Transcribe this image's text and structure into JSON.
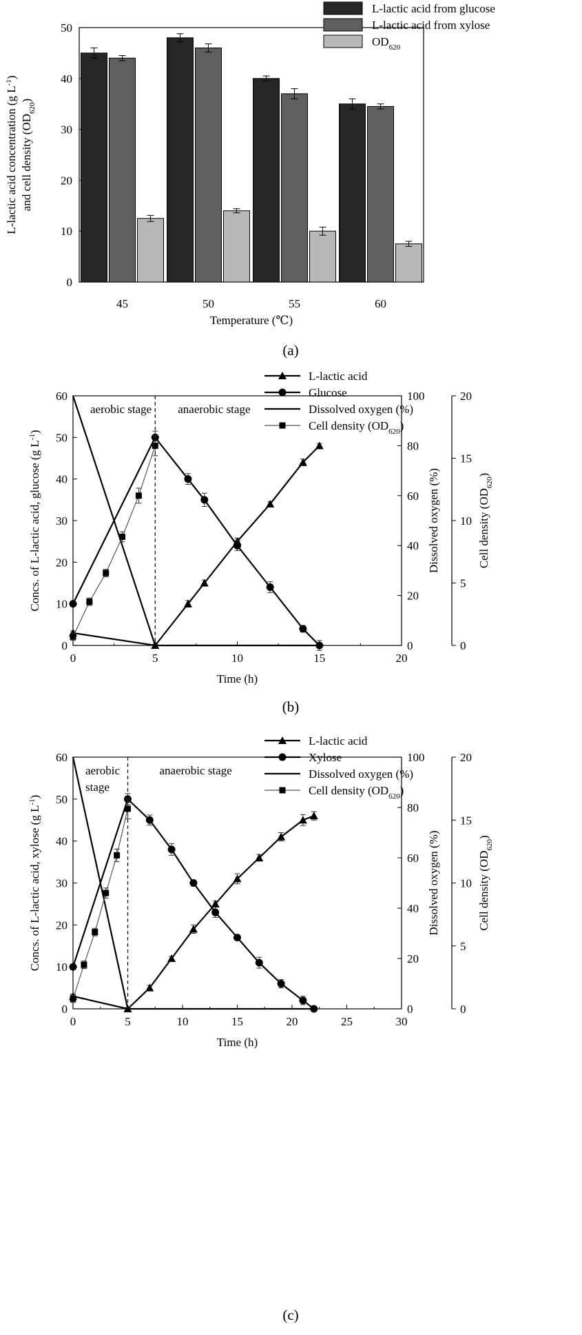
{
  "colors": {
    "glucose_bar": "#262626",
    "xylose_bar": "#5f5f5f",
    "od_bar": "#b8b8b8",
    "axis": "#000000",
    "od_line": "#555555"
  },
  "chart_data": [
    {
      "id": "a",
      "type": "bar",
      "panel_label": "(a)",
      "xlabel": "Temperature (℃)",
      "ylabel_line1": "L-lactic acid concentration (g L",
      "ylabel_line1_sup": "-1",
      "ylabel_line1_end": ")",
      "ylabel_line2": "and cell density (OD",
      "ylabel_line2_sub": "620",
      "ylabel_line2_end": ")",
      "ylim": [
        0,
        50
      ],
      "yticks": [
        0,
        10,
        20,
        30,
        40,
        50
      ],
      "categories": [
        "45",
        "50",
        "55",
        "60"
      ],
      "legend_position": "top-right",
      "series": [
        {
          "name": "L-lactic acid from glucose",
          "values": [
            45,
            48,
            40,
            35
          ],
          "errors": [
            1.0,
            0.8,
            0.5,
            1.0
          ]
        },
        {
          "name": "L-lactic acid from xylose",
          "values": [
            44,
            46,
            37,
            34.5
          ],
          "errors": [
            0.5,
            0.8,
            1.0,
            0.5
          ]
        },
        {
          "name": "OD",
          "name_sub": "620",
          "values": [
            12.5,
            14,
            10,
            7.5
          ],
          "errors": [
            0.6,
            0.4,
            0.8,
            0.5
          ]
        }
      ]
    },
    {
      "id": "b",
      "type": "line",
      "panel_label": "(b)",
      "xlabel": "Time (h)",
      "ylabel_left": "Concs. of L-lactic acid, glucose (g L",
      "ylabel_left_sup": "-1",
      "ylabel_left_end": ")",
      "ylabel_right1": "Dissolved oxygen (%)",
      "ylabel_right2": "Cell density (OD",
      "ylabel_right2_sub": "620",
      "ylabel_right2_end": ")",
      "xlim": [
        0,
        20
      ],
      "xticks": [
        0,
        5,
        10,
        15,
        20
      ],
      "ylim_left": [
        0,
        60
      ],
      "yticks_left": [
        0,
        10,
        20,
        30,
        40,
        50,
        60
      ],
      "ylim_right1": [
        0,
        100
      ],
      "yticks_right1": [
        0,
        20,
        40,
        60,
        80,
        100
      ],
      "ylim_right2": [
        0,
        20
      ],
      "yticks_right2": [
        0,
        5,
        10,
        15,
        20
      ],
      "stage_left": "aerobic  stage",
      "stage_right": "anaerobic stage",
      "stage_boundary": 5,
      "legend_position": "top-right",
      "series": [
        {
          "name": "L-lactic acid",
          "marker": "triangle",
          "axis": "left",
          "x": [
            0,
            5,
            7,
            8,
            10,
            12,
            14,
            15
          ],
          "y": [
            3,
            0,
            10,
            15,
            25,
            34,
            44,
            48
          ],
          "err": [
            0.5,
            0.3,
            0.8,
            0.7,
            0.8,
            0.5,
            0.8,
            0.5
          ]
        },
        {
          "name": "Glucose",
          "marker": "circle",
          "axis": "left",
          "x": [
            0,
            5,
            7,
            8,
            10,
            12,
            14,
            15
          ],
          "y": [
            10,
            50,
            40,
            35,
            24,
            14,
            4,
            0
          ],
          "err": [
            0.5,
            1.5,
            1.3,
            1.6,
            1.2,
            1.3,
            0.8,
            1.2
          ]
        },
        {
          "name": "Dissolved oxygen (%)",
          "marker": "none",
          "axis": "right1",
          "x": [
            0,
            5,
            5,
            15
          ],
          "y": [
            100,
            0,
            0,
            0
          ]
        },
        {
          "name": "Cell density (OD",
          "name_sub": "620",
          "name_end": ")",
          "marker": "square",
          "axis": "right2",
          "x": [
            0,
            1,
            2,
            3,
            4,
            5
          ],
          "y": [
            0.7,
            3.5,
            5.8,
            8.7,
            12,
            16
          ],
          "err": [
            0.3,
            0.3,
            0.3,
            0.4,
            0.6,
            0.8
          ]
        }
      ]
    },
    {
      "id": "c",
      "type": "line",
      "panel_label": "(c)",
      "xlabel": "Time (h)",
      "ylabel_left": "Concs. of L-lactic acid, xylose (g L",
      "ylabel_left_sup": "-1",
      "ylabel_left_end": ")",
      "ylabel_right1": "Dissolved oxygen (%)",
      "ylabel_right2": "Cell density (OD",
      "ylabel_right2_sub": "620",
      "ylabel_right2_end": ")",
      "xlim": [
        0,
        30
      ],
      "xticks": [
        0,
        5,
        10,
        15,
        20,
        25,
        30
      ],
      "ylim_left": [
        0,
        60
      ],
      "yticks_left": [
        0,
        10,
        20,
        30,
        40,
        50,
        60
      ],
      "ylim_right1": [
        0,
        100
      ],
      "yticks_right1": [
        0,
        20,
        40,
        60,
        80,
        100
      ],
      "ylim_right2": [
        0,
        20
      ],
      "yticks_right2": [
        0,
        5,
        10,
        15,
        20
      ],
      "stage_left_1": "aerobic",
      "stage_left_2": "stage",
      "stage_right": "anaerobic stage",
      "stage_boundary": 5,
      "legend_position": "top-right",
      "series": [
        {
          "name": "L-lactic acid",
          "marker": "triangle",
          "axis": "left",
          "x": [
            0,
            5,
            7,
            9,
            11,
            13,
            15,
            17,
            19,
            21,
            22
          ],
          "y": [
            3,
            0,
            5,
            12,
            19,
            25,
            31,
            36,
            41,
            45,
            46
          ],
          "err": [
            0.5,
            0.3,
            0.6,
            0.5,
            1.0,
            0.7,
            1.2,
            0.8,
            1.0,
            1.3,
            1.0
          ]
        },
        {
          "name": "Xylose",
          "marker": "circle",
          "axis": "left",
          "x": [
            0,
            5,
            7,
            9,
            11,
            13,
            15,
            17,
            19,
            21,
            22
          ],
          "y": [
            10,
            50,
            45,
            38,
            30,
            23,
            17,
            11,
            6,
            2,
            0
          ],
          "err": [
            0.6,
            1.3,
            1.2,
            1.4,
            0.6,
            1.2,
            0.5,
            1.3,
            1.0,
            1.0,
            0.3
          ]
        },
        {
          "name": "Dissolved oxygen (%)",
          "marker": "none",
          "axis": "right1",
          "x": [
            0,
            5,
            5,
            22
          ],
          "y": [
            100,
            0,
            0,
            0
          ]
        },
        {
          "name": "Cell density (OD",
          "name_sub": "620",
          "name_end": ")",
          "marker": "square",
          "axis": "right2",
          "x": [
            0,
            1,
            2,
            3,
            4,
            5
          ],
          "y": [
            0.8,
            3.5,
            6.1,
            9.2,
            12.2,
            15.9
          ],
          "err": [
            0.3,
            0.3,
            0.3,
            0.4,
            0.5,
            0.8
          ]
        }
      ]
    }
  ]
}
